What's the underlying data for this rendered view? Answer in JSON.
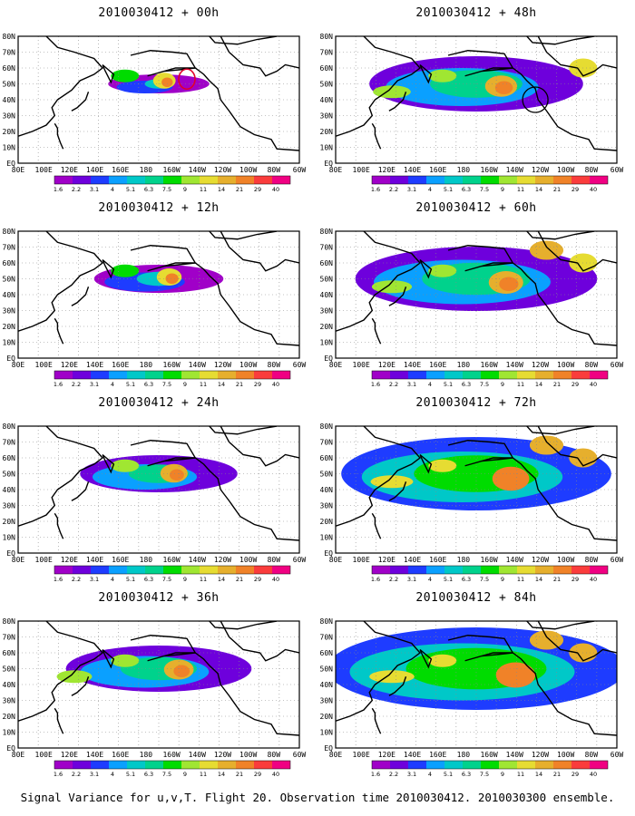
{
  "panels": [
    {
      "title": "2010030412 + 00h",
      "col": 0,
      "row": 0,
      "level": 0
    },
    {
      "title": "2010030412 + 48h",
      "col": 1,
      "row": 0,
      "level": 4
    },
    {
      "title": "2010030412 + 12h",
      "col": 0,
      "row": 1,
      "level": 1
    },
    {
      "title": "2010030412 + 60h",
      "col": 1,
      "row": 1,
      "level": 5
    },
    {
      "title": "2010030412 + 24h",
      "col": 0,
      "row": 2,
      "level": 2
    },
    {
      "title": "2010030412 + 72h",
      "col": 1,
      "row": 2,
      "level": 6
    },
    {
      "title": "2010030412 + 36h",
      "col": 0,
      "row": 3,
      "level": 3
    },
    {
      "title": "2010030412 + 84h",
      "col": 1,
      "row": 3,
      "level": 7
    }
  ],
  "lat_labels": [
    "80N",
    "70N",
    "60N",
    "50N",
    "40N",
    "30N",
    "20N",
    "10N",
    "EQ"
  ],
  "lon_labels": [
    "80E",
    "100E",
    "120E",
    "140E",
    "160E",
    "180",
    "160W",
    "140W",
    "120W",
    "100W",
    "80W",
    "60W"
  ],
  "colorbar": {
    "labels": [
      "1.6",
      "2.2",
      "3.1",
      "4",
      "5.1",
      "6.3",
      "7.5",
      "9",
      "11",
      "14",
      "21",
      "29",
      "40"
    ],
    "colors": [
      "#a000c8",
      "#6e00dc",
      "#1e3cff",
      "#0aa0ff",
      "#00c8c8",
      "#00d28c",
      "#00dc00",
      "#a0e632",
      "#e6dc32",
      "#e6af2d",
      "#f08228",
      "#fa3c3c",
      "#f00082"
    ]
  },
  "footer": "Signal Variance for u,v,T. Flight 20. Observation time 2010030412. 2010030300 ensemble."
}
